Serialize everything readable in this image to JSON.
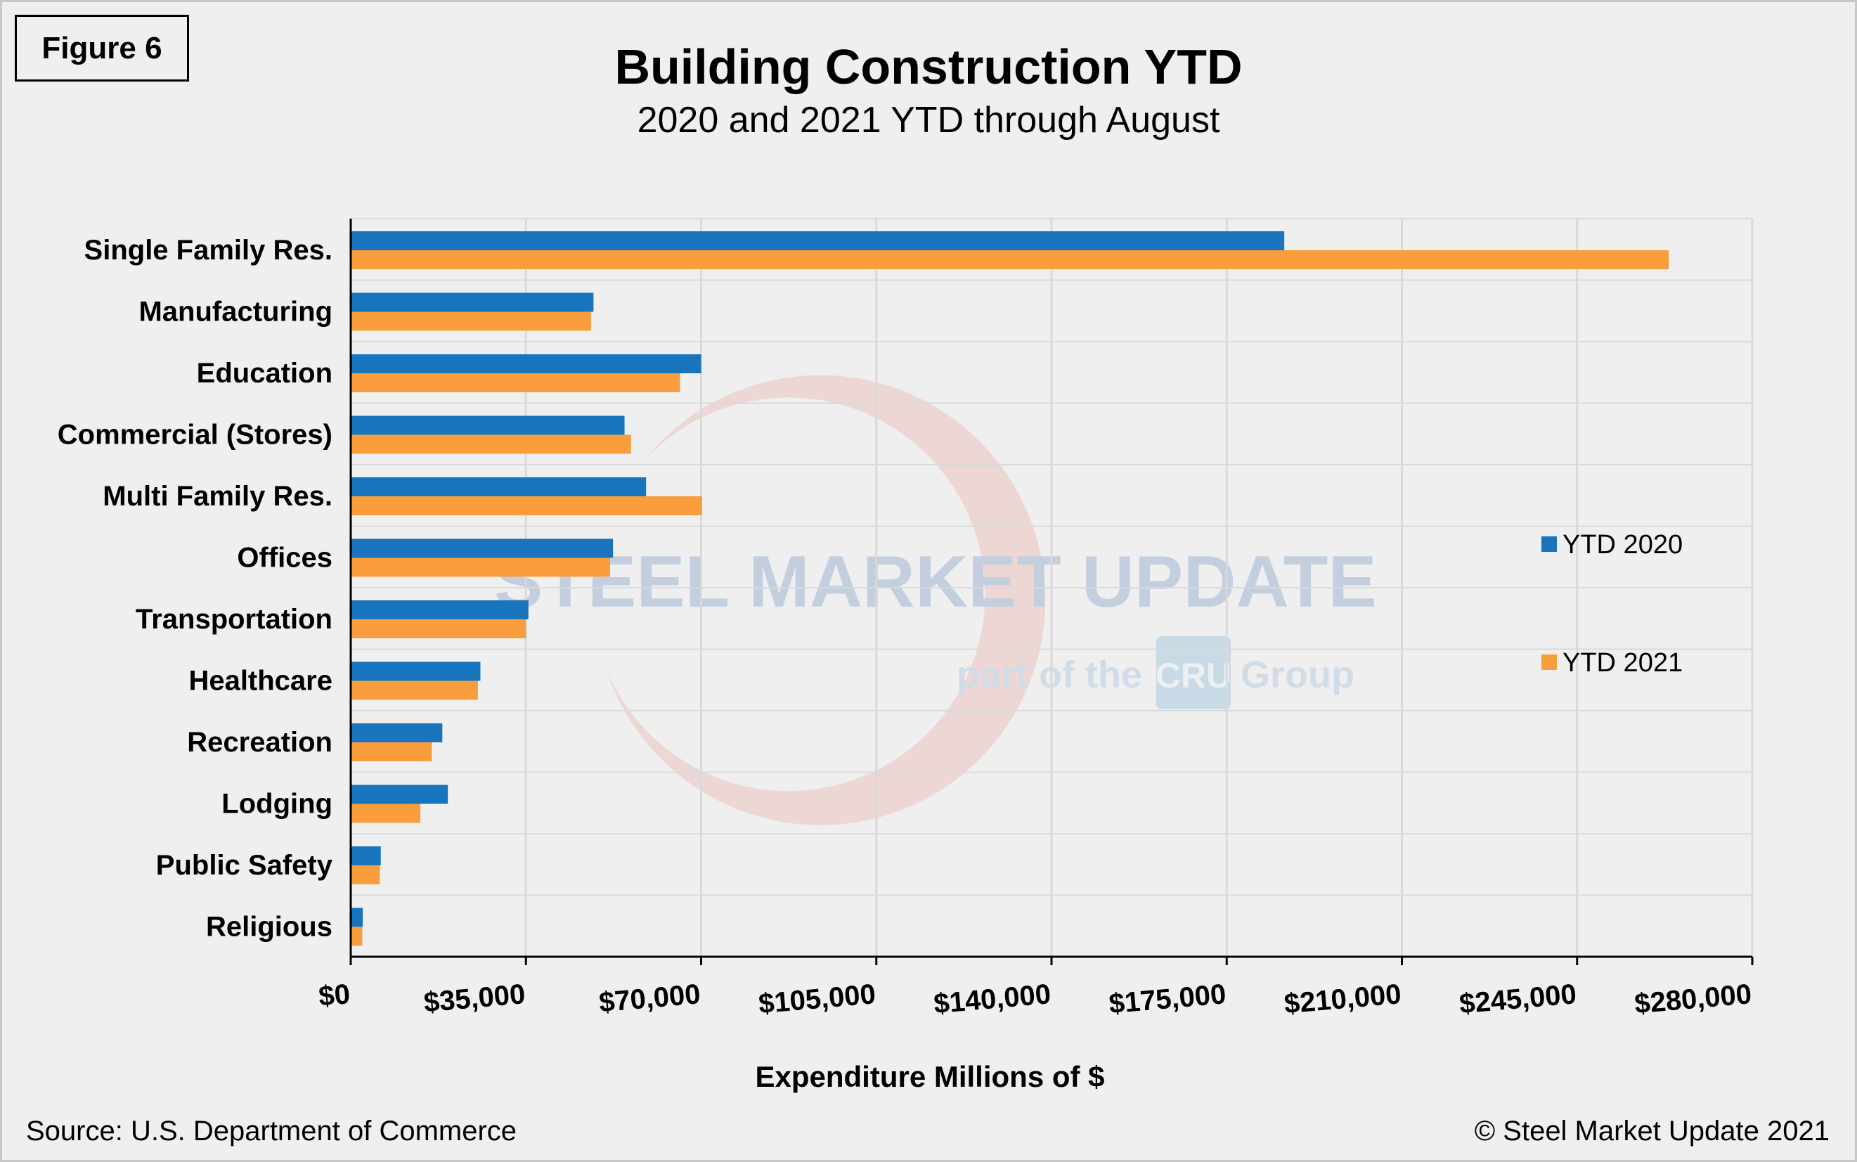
{
  "figure_label": "Figure 6",
  "source_note": "Source: U.S. Department of Commerce",
  "copyright_note": "© Steel Market Update 2021",
  "watermark": {
    "brand": "STEEL MARKET UPDATE",
    "tagline_before": "part of the",
    "tagline_logo": "CRU",
    "tagline_after": "Group"
  },
  "colors": {
    "ytd_2020": "#1874bd",
    "ytd_2021": "#f99d3d",
    "grid": "#d9d9d9",
    "background": "#efefef"
  },
  "chart_data": {
    "type": "bar",
    "orientation": "horizontal",
    "title": "Building Construction YTD",
    "subtitle": "2020 and 2021 YTD through August",
    "xlabel": "Expenditure Millions of $",
    "ylabel": "",
    "xlim": [
      0,
      280000
    ],
    "xticks": [
      0,
      35000,
      70000,
      105000,
      140000,
      175000,
      210000,
      245000,
      280000
    ],
    "xtick_labels": [
      "$0",
      "$35,000",
      "$70,000",
      "$105,000",
      "$140,000",
      "$175,000",
      "$210,000",
      "$245,000",
      "$280,000"
    ],
    "categories": [
      "Single Family Res.",
      "Manufacturing",
      "Education",
      "Commercial (Stores)",
      "Multi Family Res.",
      "Offices",
      "Transportation",
      "Healthcare",
      "Recreation",
      "Lodging",
      "Public Safety",
      "Religious"
    ],
    "series": [
      {
        "name": "YTD 2020",
        "values": [
          186500,
          48500,
          70000,
          54700,
          59000,
          52400,
          35500,
          25900,
          18300,
          19400,
          6000,
          2400
        ]
      },
      {
        "name": "YTD 2021",
        "values": [
          263300,
          48000,
          65800,
          56000,
          70200,
          51800,
          35000,
          25400,
          16200,
          13900,
          5800,
          2300
        ]
      }
    ],
    "grid": true,
    "legend_position": "right"
  }
}
